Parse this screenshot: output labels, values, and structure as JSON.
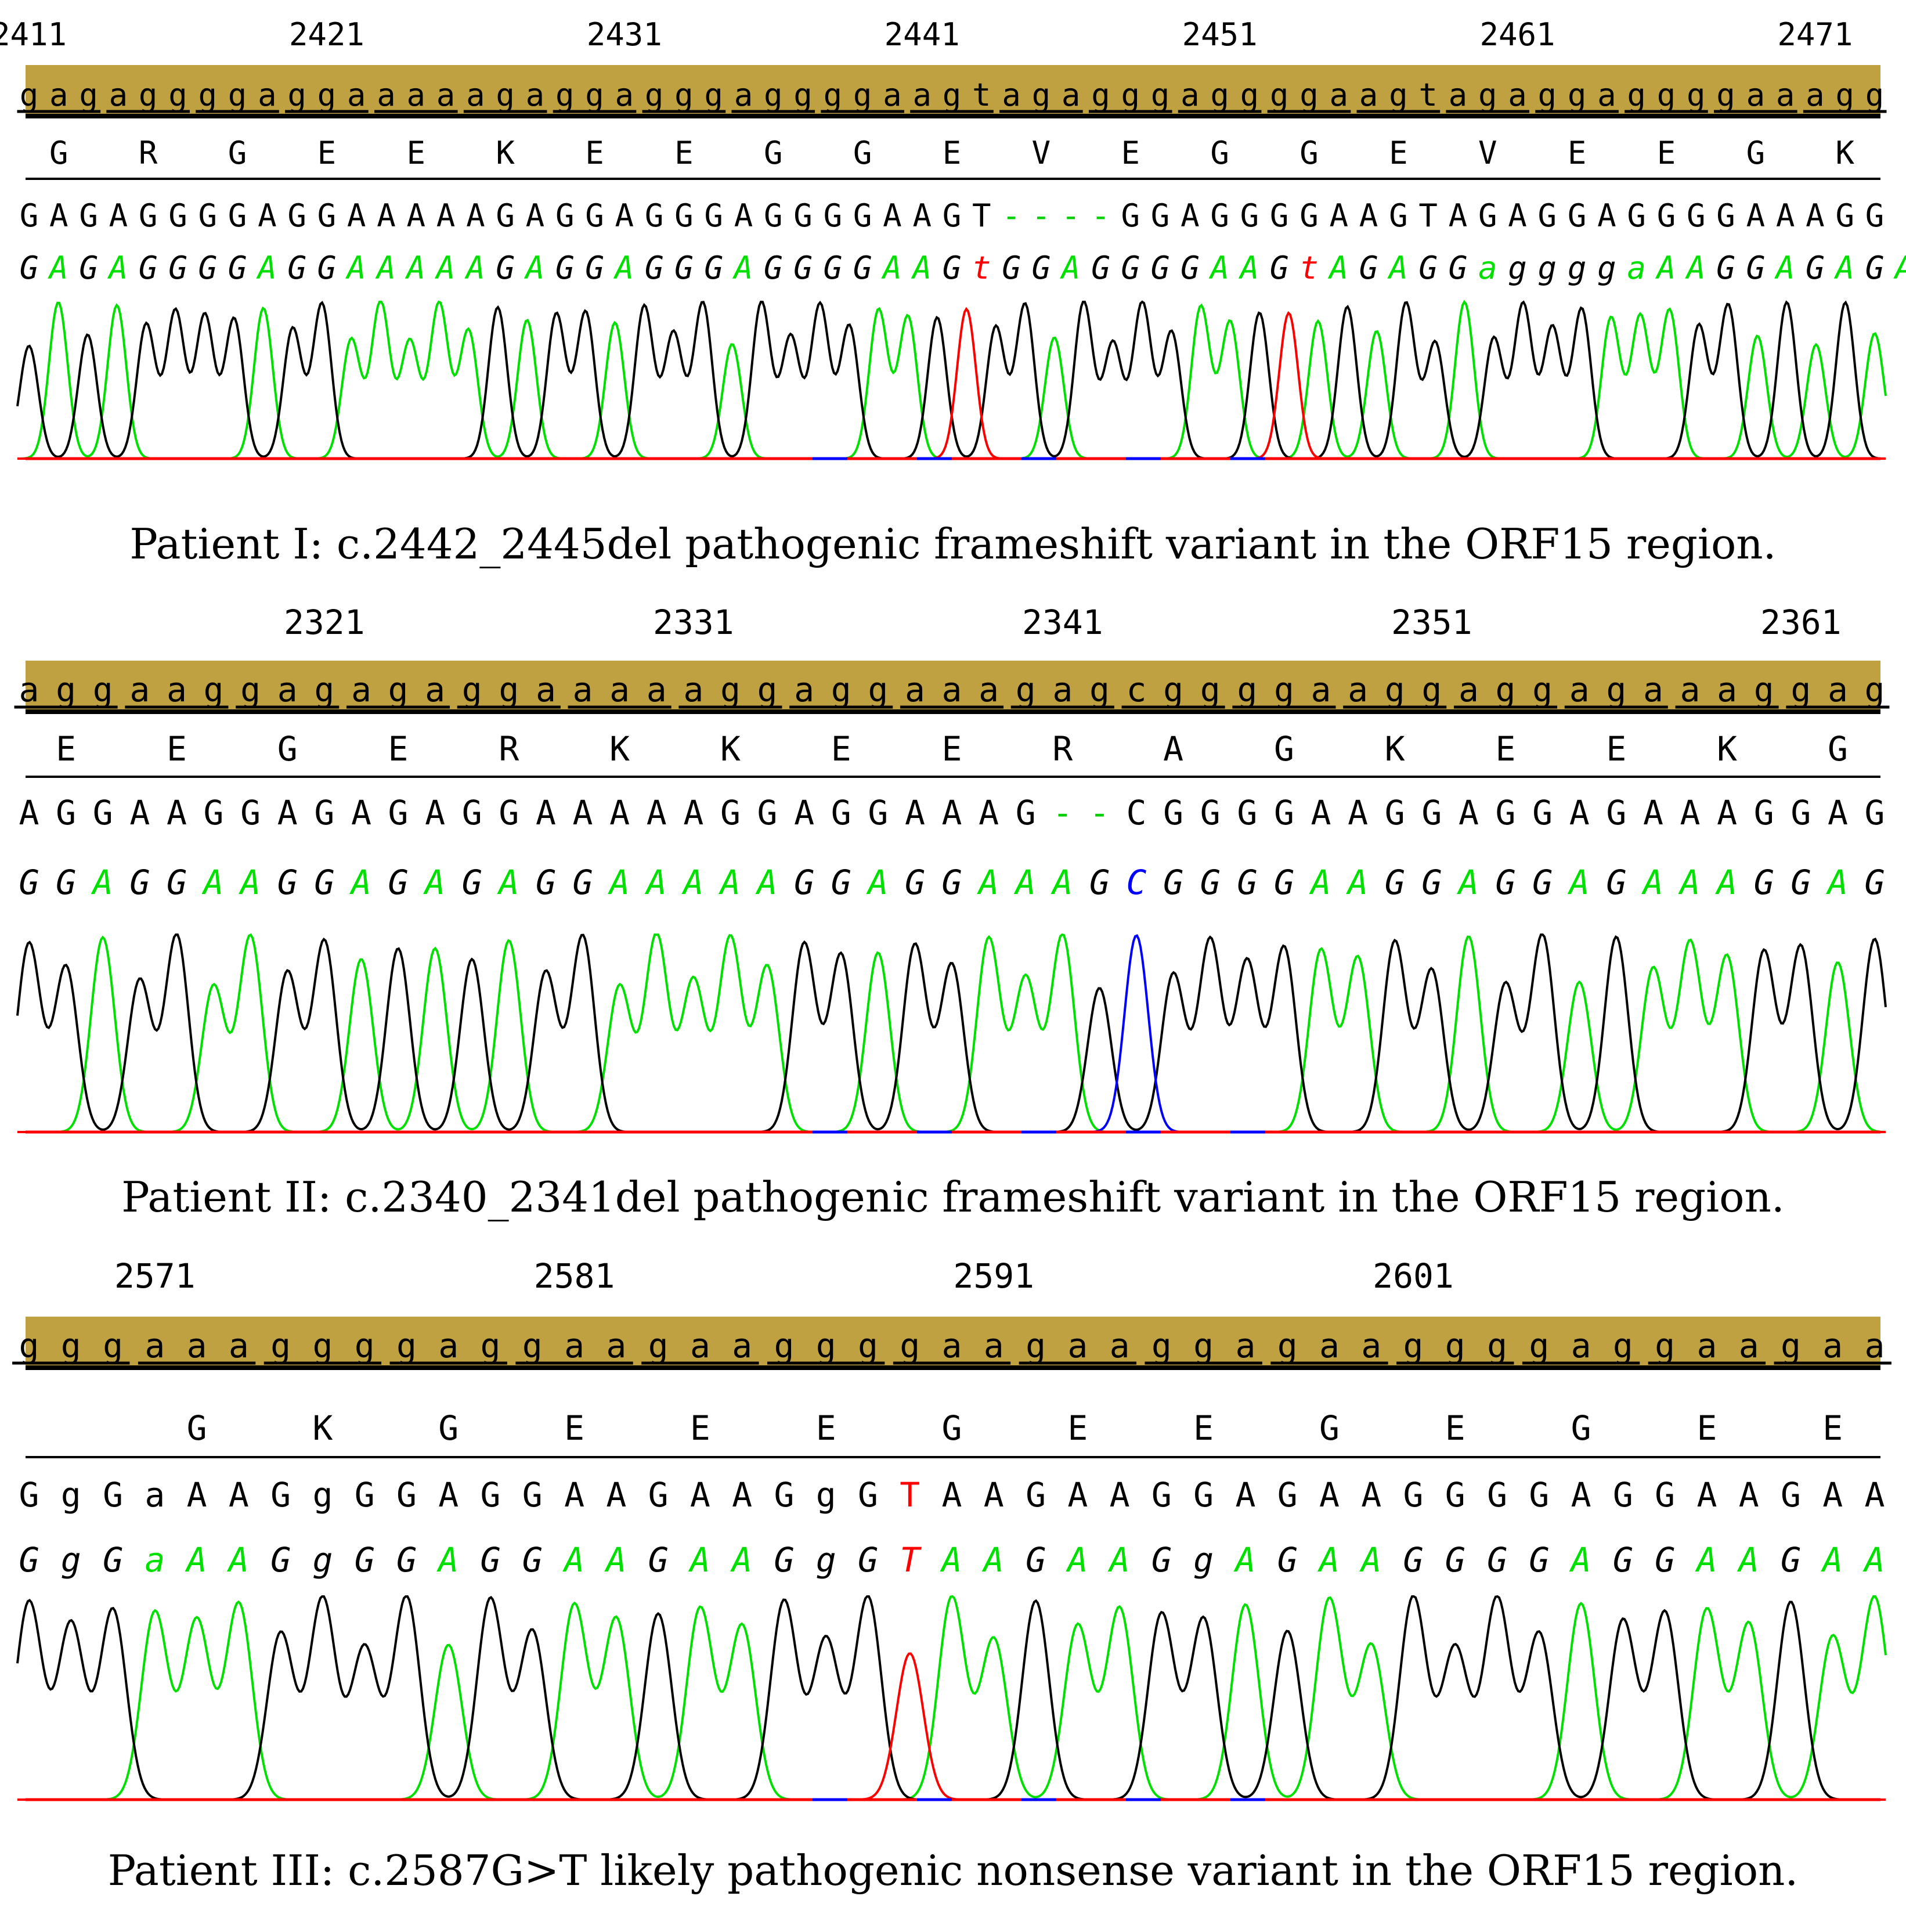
{
  "colors": {
    "ref_bar": "#bfa141",
    "base_A": "#00e000",
    "base_G": "#000000",
    "base_C": "#0000ff",
    "base_T": "#ff0000",
    "gap": "#00d000",
    "baseline_red": "#ff0000",
    "baseline_blue": "#0000ff"
  },
  "panels": [
    {
      "positions": [
        {
          "label": "2411",
          "index": 0
        },
        {
          "label": "2421",
          "index": 10
        },
        {
          "label": "2431",
          "index": 20
        },
        {
          "label": "2441",
          "index": 30
        },
        {
          "label": "2451",
          "index": 40
        },
        {
          "label": "2461",
          "index": 50
        },
        {
          "label": "2471",
          "index": 60
        }
      ],
      "reference": "gagaggggaggaaaaagaggagggaggggaagtagagggaggggaagtagaggaggggaaagg",
      "amino_acids": "G R G E E K E E G G E V E G G E V E E G K",
      "sequence": "GAGAGGGGAGGAAAAAGAGGAGGGAGGGGAAGT----GGAGGGGAAGTAGAGGAGGGGAAAGG",
      "basecalls": "GAGAGGGGAGGAAAAAGAGGAGGGAGGGGAAGtGGAGGGGAAGtAGAGGaggggaAAGGAGAGA",
      "caption": "Patient I: c.2442_2445del pathogenic frameshift variant in the ORF15 region."
    },
    {
      "positions": [
        {
          "label": "2321",
          "index": 8
        },
        {
          "label": "2331",
          "index": 18
        },
        {
          "label": "2341",
          "index": 28
        },
        {
          "label": "2351",
          "index": 38
        },
        {
          "label": "2361",
          "index": 48
        }
      ],
      "reference": "aggaaggagagaggaaaaaggaggaaagagcggggaaggaggagaaaggag",
      "amino_acids": "E E G E R K K E E R A G K E E K G",
      "sequence": "AGGAAGGAGAGAGGAAAAAGGAGGAAAG--CGGGGAAGGAGGAGAAAGGAG",
      "basecalls": "GGAGGAAGGAGAGAGGAAAAAGGAGGAAAGCGGGGAAGGAGGAGAAAGGAG",
      "caption": "Patient II: c.2340_2341del pathogenic frameshift variant in the ORF15 region."
    },
    {
      "positions": [
        {
          "label": "2571",
          "index": 3
        },
        {
          "label": "2581",
          "index": 13
        },
        {
          "label": "2591",
          "index": 23
        },
        {
          "label": "2601",
          "index": 33
        }
      ],
      "reference": "gggaaaggggaggaagaaggggaagaaggagaaggggaggaagaa",
      "amino_acids": " G K G E E E G E E G E G E E E",
      "sequence": "GgGaAAGgGGAGGAAGAAGgGTAAGAAGGAGAAGGGGAGGAAGAA",
      "basecalls": "GgGaAAGgGGAGGAAGAAGgGTAAGAAGgAGAAGGGGAGGAAGAA",
      "caption": "Patient III: c.2587G>T likely pathogenic nonsense variant in the ORF15 region."
    }
  ]
}
